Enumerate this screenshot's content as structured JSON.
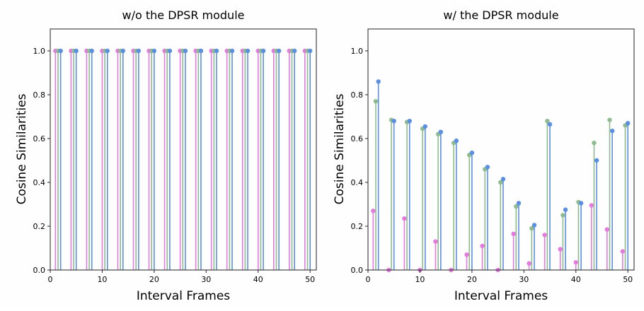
{
  "chart_data": [
    {
      "type": "stem",
      "title": "w/o the DPSR module",
      "xlabel": "Interval Frames",
      "ylabel": "Cosine Similarities",
      "xlim": [
        0,
        51.2
      ],
      "ylim": [
        0,
        1.1
      ],
      "xticks": [
        0,
        10,
        20,
        30,
        40,
        50
      ],
      "yticks": [
        0.0,
        0.2,
        0.4,
        0.6,
        0.8,
        1.0
      ],
      "grid": false,
      "x": [
        1,
        4,
        7,
        10,
        13,
        16,
        19,
        22,
        25,
        28,
        31,
        34,
        37,
        40,
        43,
        46,
        49
      ],
      "series": [
        {
          "name": "pink",
          "color": "#e47ae0",
          "offset": 0,
          "values": [
            1,
            1,
            1,
            1,
            1,
            1,
            1,
            1,
            1,
            1,
            1,
            1,
            1,
            1,
            1,
            1,
            1
          ]
        },
        {
          "name": "green",
          "color": "#8fbb8f",
          "offset": 0.5,
          "values": [
            1,
            1,
            1,
            1,
            1,
            1,
            1,
            1,
            1,
            1,
            1,
            1,
            1,
            1,
            1,
            1,
            1
          ]
        },
        {
          "name": "blue",
          "color": "#5b8fe0",
          "offset": 1,
          "values": [
            1,
            1,
            1,
            1,
            1,
            1,
            1,
            1,
            1,
            1,
            1,
            1,
            1,
            1,
            1,
            1,
            1
          ]
        }
      ]
    },
    {
      "type": "stem",
      "title": "w/ the DPSR module",
      "xlabel": "Interval Frames",
      "ylabel": "Cosine Similarities",
      "xlim": [
        0,
        51.2
      ],
      "ylim": [
        0,
        1.1
      ],
      "xticks": [
        0,
        10,
        20,
        30,
        40,
        50
      ],
      "yticks": [
        0.0,
        0.2,
        0.4,
        0.6,
        0.8,
        1.0
      ],
      "grid": false,
      "x": [
        1,
        4,
        7,
        10,
        13,
        16,
        19,
        22,
        25,
        28,
        31,
        34,
        37,
        40,
        43,
        46,
        49
      ],
      "series": [
        {
          "name": "pink",
          "color": "#e47ae0",
          "offset": 0,
          "values": [
            0.27,
            0.0,
            0.235,
            0.0,
            0.13,
            0.0,
            0.07,
            0.11,
            0.0,
            0.165,
            0.03,
            0.16,
            0.095,
            0.035,
            0.295,
            0.185,
            0.085
          ]
        },
        {
          "name": "green",
          "color": "#8fbb8f",
          "offset": 0.5,
          "values": [
            0.77,
            0.685,
            0.675,
            0.645,
            0.62,
            0.58,
            0.525,
            0.46,
            0.4,
            0.29,
            0.19,
            0.68,
            0.25,
            0.31,
            0.58,
            0.685,
            0.66
          ]
        },
        {
          "name": "blue",
          "color": "#5b8fe0",
          "offset": 1,
          "values": [
            0.86,
            0.68,
            0.68,
            0.655,
            0.63,
            0.59,
            0.535,
            0.47,
            0.415,
            0.305,
            0.205,
            0.665,
            0.275,
            0.305,
            0.5,
            0.635,
            0.67
          ]
        }
      ]
    }
  ]
}
